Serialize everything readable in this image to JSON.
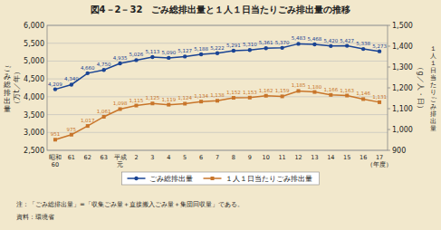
{
  "chart_data": {
    "type": "line",
    "title": "図4－2－32　ごみ総排出量と１人１日当たりごみ排出量の推移",
    "categories": [
      "昭和\n60",
      "61",
      "62",
      "63",
      "平成\n元",
      "2",
      "3",
      "4",
      "5",
      "6",
      "7",
      "8",
      "9",
      "10",
      "11",
      "12",
      "13",
      "14",
      "15",
      "16",
      "17\n（年度）"
    ],
    "series": [
      {
        "name": "ごみ総排出量",
        "color": "#1a4494",
        "marker": "circle",
        "values": [
          4209,
          4340,
          4660,
          4750,
          4935,
          5026,
          5113,
          5090,
          5127,
          5188,
          5222,
          5291,
          5310,
          5361,
          5370,
          5483,
          5468,
          5420,
          5427,
          5338,
          5273
        ],
        "value_labels": [
          "4,209",
          "4,340",
          "4,660",
          "4,750",
          "4,935",
          "5,026",
          "5,113",
          "5,090",
          "5,127",
          "5,188",
          "5,222",
          "5,291",
          "5,310",
          "5,361",
          "5,370",
          "5,483",
          "5,468",
          "5,420",
          "5,427",
          "5,338",
          "5,273"
        ]
      },
      {
        "name": "１人１日当たりごみ排出量",
        "color": "#c8752a",
        "marker": "square",
        "axis": "y2",
        "values": [
          951,
          975,
          1017,
          1061,
          1098,
          1115,
          1125,
          1119,
          1124,
          1134,
          1138,
          1152,
          1153,
          1162,
          1159,
          1185,
          1180,
          1166,
          1163,
          1146,
          1131
        ],
        "value_labels": [
          "951",
          "975",
          "1,017",
          "1,061",
          "1,098",
          "1,115",
          "1,125",
          "1,119",
          "1,124",
          "1,134",
          "1,138",
          "1,152",
          "1,153",
          "1,162",
          "1,159",
          "1,185",
          "1,180",
          "1,166",
          "1,163",
          "1,146",
          "1,131"
        ]
      }
    ],
    "ylabel": "（万t／年）",
    "y2label": "（g／人・日）",
    "ylim": [
      2500,
      6000
    ],
    "yticks": [
      {
        "value": 2500,
        "label": "2,500"
      },
      {
        "value": 3000,
        "label": "3,000"
      },
      {
        "value": 3500,
        "label": "3,500"
      },
      {
        "value": 4000,
        "label": "4,000"
      },
      {
        "value": 4500,
        "label": "4,500"
      },
      {
        "value": 5000,
        "label": "5,000"
      },
      {
        "value": 5500,
        "label": "5,500"
      },
      {
        "value": 6000,
        "label": "6,000"
      }
    ],
    "y2lim": [
      900,
      1500
    ],
    "y2ticks": [
      900,
      {
        "value": 1000,
        "label": "1,000"
      },
      {
        "value": 1100,
        "label": "1,100"
      },
      {
        "value": 1200,
        "label": "1,200"
      },
      {
        "value": 1300,
        "label": "1,300"
      },
      {
        "value": 1400,
        "label": "1,400"
      },
      {
        "value": 1500,
        "label": "1,500"
      }
    ],
    "grid": true,
    "legend": "bottom",
    "data_labels": true,
    "annotations": [
      "ご\nみ\n総\n排\n出\n量",
      "１\n人\n１\n日\n当\nた\nり\nご\nみ\n排\n出\n量",
      "注：「ごみ総排出量」=「収集ごみ量＋直接搬入ごみ量＋集団回収量」である。",
      "資料：環境省"
    ]
  }
}
